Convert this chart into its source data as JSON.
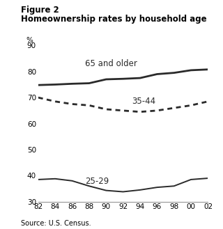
{
  "title_line1": "Figure 2",
  "title_line2": "Homeownership rates by household age",
  "source": "Source: U.S. Census.",
  "ylabel": "%",
  "years": [
    82,
    84,
    86,
    88,
    90,
    92,
    94,
    96,
    98,
    100,
    102
  ],
  "series_65plus": [
    74.8,
    75.0,
    75.3,
    75.5,
    77.0,
    77.2,
    77.5,
    79.0,
    79.5,
    80.5,
    80.8
  ],
  "series_35_44": [
    70.0,
    68.5,
    67.5,
    67.0,
    65.5,
    65.0,
    64.5,
    65.0,
    66.0,
    67.0,
    68.5
  ],
  "series_25_29": [
    38.5,
    38.8,
    38.0,
    36.0,
    34.3,
    33.8,
    34.5,
    35.5,
    36.0,
    38.5,
    39.0
  ],
  "label_65plus": "65 and older",
  "label_35_44": "35-44",
  "label_25_29": "25-29",
  "ylim_min": 30,
  "ylim_max": 90,
  "yticks": [
    30,
    40,
    50,
    60,
    70,
    80,
    90
  ],
  "xtick_labels": [
    "82",
    "84",
    "86",
    "88",
    "90",
    "92",
    "94",
    "96",
    "98",
    "00",
    "02"
  ],
  "line_color": "#2a2a2a",
  "background_color": "#ffffff",
  "title_fontsize": 8.5,
  "label_fontsize": 8.5,
  "tick_fontsize": 7.5,
  "source_fontsize": 7.0
}
